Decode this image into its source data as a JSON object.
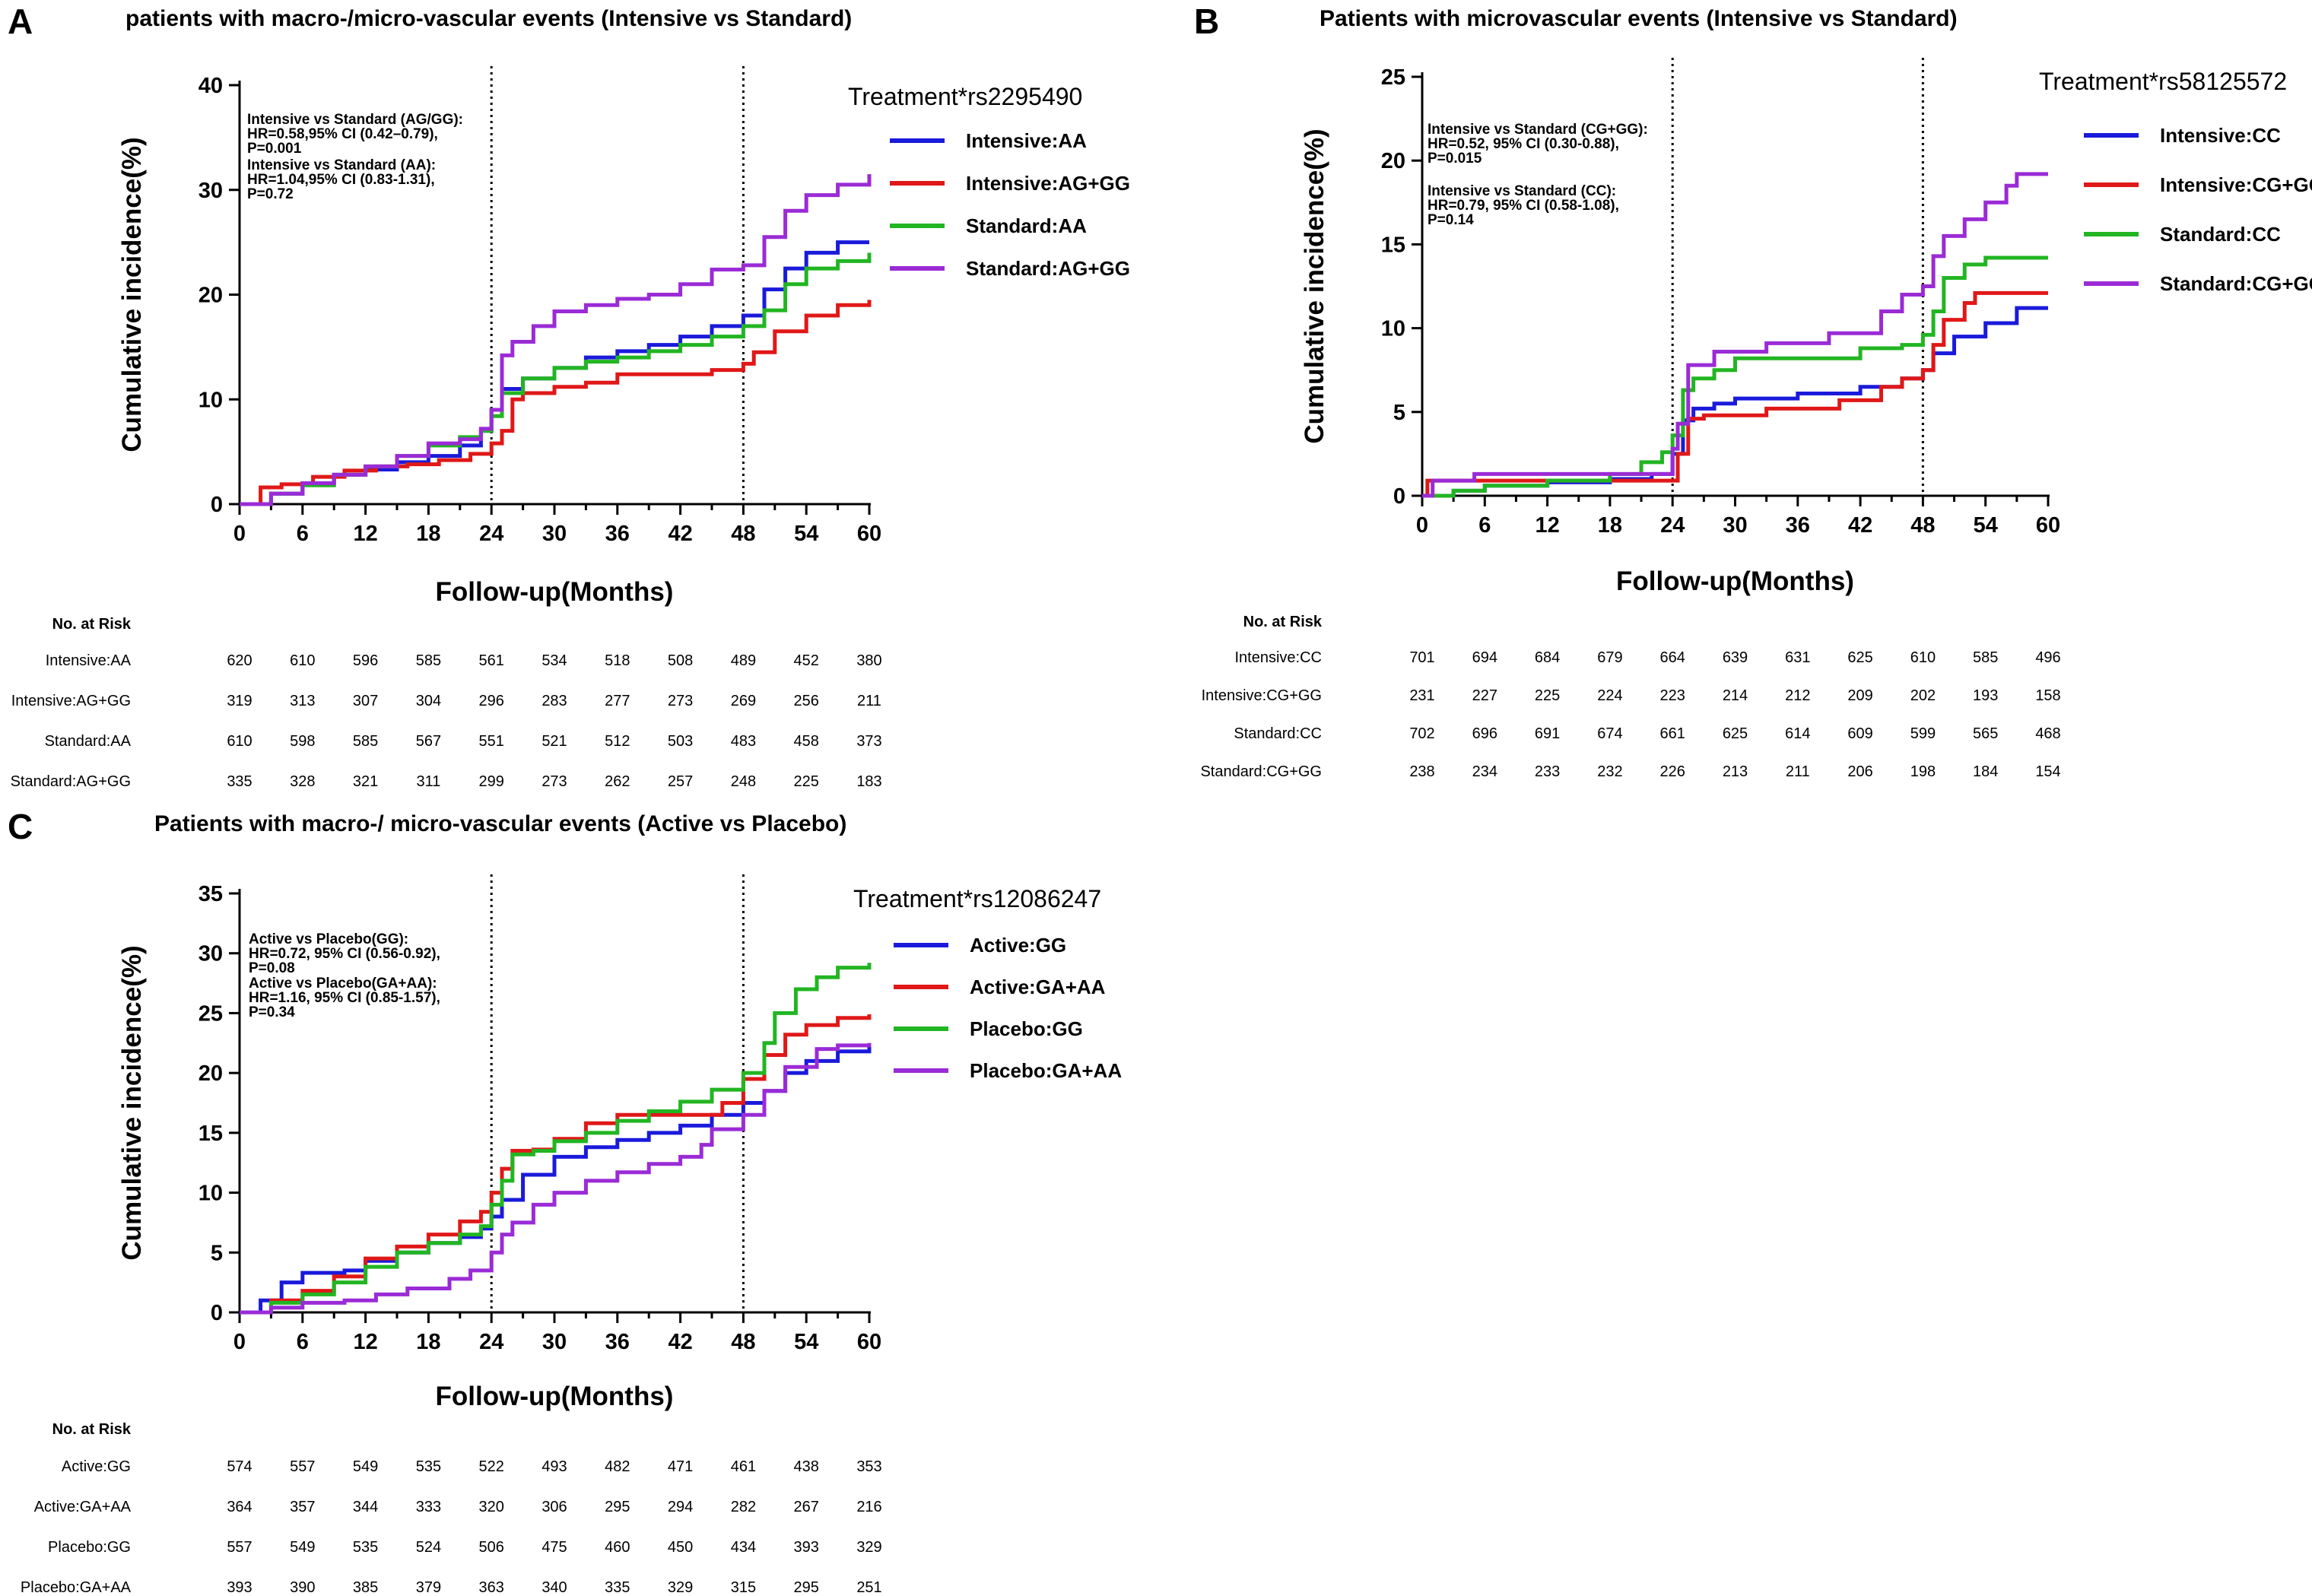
{
  "colors": {
    "blue": "#1a1adb",
    "red": "#e01818",
    "green": "#22b522",
    "purple": "#9a2bd6"
  },
  "risk_header": "No. at Risk",
  "xlabel": "Follow-up(Months)",
  "ylabel": "Cumulative incidence(%)",
  "chart_data": [
    {
      "type": "line",
      "panel": "A",
      "title": "patients with macro-/micro-vascular events (Intensive vs Standard)",
      "xlabel": "Follow-up(Months)",
      "ylabel": "Cumulative incidence(%)",
      "xlim": [
        0,
        60
      ],
      "ylim": [
        0,
        40
      ],
      "x_ticks": [
        0,
        6,
        12,
        18,
        24,
        30,
        36,
        42,
        48,
        54,
        60
      ],
      "y_ticks": [
        0,
        10,
        20,
        30,
        40
      ],
      "vlines": [
        24,
        48
      ],
      "legend_title": "Treatment*rs2295490",
      "annotations": [
        [
          "Intensive vs Standard (AG/GG):",
          "HR=0.58,95% CI (0.42–0.79),",
          "P=0.001"
        ],
        [
          "Intensive vs Standard (AA):",
          "HR=1.04,95% CI (0.83-1.31),",
          "P=0.72"
        ]
      ],
      "series": [
        {
          "name": "Intensive:AA",
          "color": "blue",
          "x": [
            0,
            3,
            6,
            9,
            12,
            15,
            18,
            21,
            23,
            24,
            25,
            27,
            30,
            33,
            36,
            39,
            42,
            45,
            48,
            50,
            52,
            54,
            57,
            60
          ],
          "y": [
            0,
            1,
            2,
            2.8,
            3.3,
            4,
            4.6,
            5.6,
            7,
            9,
            11,
            12,
            13,
            14,
            14.6,
            15.2,
            16,
            17,
            18,
            20.5,
            22.5,
            24,
            25,
            25
          ]
        },
        {
          "name": "Intensive:AG+GG",
          "color": "red",
          "x": [
            0,
            2,
            4,
            7,
            10,
            13,
            16,
            19,
            22,
            24,
            25,
            26,
            27,
            30,
            33,
            36,
            42,
            45,
            48,
            49,
            51,
            54,
            57,
            60
          ],
          "y": [
            0,
            1.6,
            1.9,
            2.6,
            3.2,
            3.6,
            3.8,
            4.2,
            4.8,
            5.8,
            7,
            10,
            10.6,
            11.2,
            11.6,
            12.4,
            12.4,
            12.8,
            13.4,
            14.5,
            16.5,
            18,
            19,
            19.5
          ]
        },
        {
          "name": "Standard:AA",
          "color": "green",
          "x": [
            0,
            3,
            6,
            9,
            12,
            15,
            18,
            21,
            23,
            24,
            25,
            27,
            30,
            33,
            36,
            39,
            42,
            45,
            48,
            50,
            52,
            54,
            57,
            60
          ],
          "y": [
            0,
            1,
            1.8,
            2.8,
            3.6,
            4.6,
            5.6,
            6.4,
            7,
            8.4,
            10.6,
            12,
            13,
            13.6,
            14,
            14.6,
            15.2,
            16,
            17,
            18.5,
            21,
            22.5,
            23.2,
            24
          ]
        },
        {
          "name": "Standard:AG+GG",
          "color": "purple",
          "x": [
            0,
            3,
            6,
            9,
            12,
            15,
            18,
            21,
            23,
            24,
            25,
            26,
            28,
            30,
            33,
            36,
            39,
            42,
            45,
            48,
            50,
            52,
            54,
            57,
            60
          ],
          "y": [
            0,
            1,
            2,
            2.8,
            3.6,
            4.6,
            5.8,
            6.2,
            7.2,
            9,
            14.2,
            15.5,
            17,
            18.4,
            19,
            19.6,
            20,
            21,
            22.4,
            22.8,
            25.5,
            28,
            29.5,
            30.5,
            31.5
          ]
        }
      ],
      "risk_table": [
        {
          "label": "Intensive:AA",
          "values": [
            620,
            610,
            596,
            585,
            561,
            534,
            518,
            508,
            489,
            452,
            380
          ]
        },
        {
          "label": "Intensive:AG+GG",
          "values": [
            319,
            313,
            307,
            304,
            296,
            283,
            277,
            273,
            269,
            256,
            211
          ]
        },
        {
          "label": "Standard:AA",
          "values": [
            610,
            598,
            585,
            567,
            551,
            521,
            512,
            503,
            483,
            458,
            373
          ]
        },
        {
          "label": "Standard:AG+GG",
          "values": [
            335,
            328,
            321,
            311,
            299,
            273,
            262,
            257,
            248,
            225,
            183
          ]
        }
      ]
    },
    {
      "type": "line",
      "panel": "B",
      "title": "Patients with microvascular events (Intensive vs Standard)",
      "xlabel": "Follow-up(Months)",
      "ylabel": "Cumulative incidence(%)",
      "xlim": [
        0,
        60
      ],
      "ylim": [
        0,
        25
      ],
      "x_ticks": [
        0,
        6,
        12,
        18,
        24,
        30,
        36,
        42,
        48,
        54,
        60
      ],
      "y_ticks": [
        0,
        5,
        10,
        15,
        20,
        25
      ],
      "vlines": [
        24,
        48
      ],
      "legend_title": "Treatment*rs58125572",
      "annotations": [
        [
          "Intensive vs Standard (CG+GG):",
          "HR=0.52, 95% CI (0.30-0.88),",
          "P=0.015"
        ],
        [
          "Intensive vs Standard (CC):",
          "HR=0.79, 95% CI (0.58-1.08),",
          "P=0.14"
        ]
      ],
      "series": [
        {
          "name": "Intensive:CC",
          "color": "blue",
          "x": [
            0,
            3,
            6,
            12,
            18,
            22,
            24,
            25,
            26,
            28,
            30,
            36,
            42,
            46,
            48,
            49,
            51,
            54,
            57,
            60
          ],
          "y": [
            0,
            0.3,
            0.6,
            0.8,
            1,
            1.3,
            2.5,
            4.5,
            5.2,
            5.5,
            5.8,
            6.1,
            6.5,
            7,
            7.5,
            8.5,
            9.5,
            10.3,
            11.2,
            11.2
          ]
        },
        {
          "name": "Intensive:CG+GG",
          "color": "red",
          "x": [
            0,
            0.5,
            24,
            24.5,
            25.5,
            27,
            33,
            40,
            44,
            46,
            48,
            49,
            50,
            52,
            53,
            60
          ],
          "y": [
            0,
            0.9,
            0.9,
            2.5,
            4.6,
            4.8,
            5.2,
            5.7,
            6.5,
            7,
            7.5,
            9,
            10.5,
            11.5,
            12.1,
            12.1
          ]
        },
        {
          "name": "Standard:CC",
          "color": "green",
          "x": [
            0,
            3,
            6,
            12,
            18,
            21,
            23,
            24,
            25,
            26,
            28,
            30,
            36,
            42,
            46,
            48,
            49,
            50,
            52,
            54,
            57,
            60
          ],
          "y": [
            0,
            0.3,
            0.6,
            0.9,
            1.3,
            2,
            2.6,
            3.6,
            6.3,
            7,
            7.5,
            8.2,
            8.2,
            8.8,
            9,
            9.6,
            11,
            13,
            13.8,
            14.2,
            14.2,
            14.2
          ]
        },
        {
          "name": "Standard:CG+GG",
          "color": "purple",
          "x": [
            0,
            1,
            5,
            12,
            22,
            24,
            24.5,
            25.5,
            28,
            33,
            39,
            44,
            46,
            48,
            49,
            50,
            52,
            54,
            56,
            57,
            60
          ],
          "y": [
            0,
            0.9,
            1.3,
            1.3,
            1.3,
            2.8,
            4.3,
            7.8,
            8.6,
            9.1,
            9.7,
            11,
            12,
            12.5,
            14.3,
            15.5,
            16.5,
            17.5,
            18.5,
            19.2,
            19.2
          ]
        }
      ],
      "risk_table": [
        {
          "label": "Intensive:CC",
          "values": [
            701,
            694,
            684,
            679,
            664,
            639,
            631,
            625,
            610,
            585,
            496
          ]
        },
        {
          "label": "Intensive:CG+GG",
          "values": [
            231,
            227,
            225,
            224,
            223,
            214,
            212,
            209,
            202,
            193,
            158
          ]
        },
        {
          "label": "Standard:CC",
          "values": [
            702,
            696,
            691,
            674,
            661,
            625,
            614,
            609,
            599,
            565,
            468
          ]
        },
        {
          "label": "Standard:CG+GG",
          "values": [
            238,
            234,
            233,
            232,
            226,
            213,
            211,
            206,
            198,
            184,
            154
          ]
        }
      ]
    },
    {
      "type": "line",
      "panel": "C",
      "title": "Patients with macro-/ micro-vascular events (Active vs Placebo)",
      "xlabel": "Follow-up(Months)",
      "ylabel": "Cumulative incidence(%)",
      "xlim": [
        0,
        60
      ],
      "ylim": [
        0,
        35
      ],
      "x_ticks": [
        0,
        6,
        12,
        18,
        24,
        30,
        36,
        42,
        48,
        54,
        60
      ],
      "y_ticks": [
        0,
        5,
        10,
        15,
        20,
        25,
        30,
        35
      ],
      "vlines": [
        24,
        48
      ],
      "legend_title": "Treatment*rs12086247",
      "annotations": [
        [
          "Active vs Placebo(GG):",
          "HR=0.72, 95% CI (0.56-0.92),",
          "P=0.08"
        ],
        [
          "Active vs Placebo(GA+AA):",
          "HR=1.16, 95% CI (0.85-1.57),",
          "P=0.34"
        ]
      ],
      "series": [
        {
          "name": "Active:GG",
          "color": "blue",
          "x": [
            0,
            2,
            4,
            6,
            10,
            12,
            15,
            18,
            21,
            23,
            24,
            25,
            27,
            30,
            33,
            36,
            39,
            42,
            45,
            48,
            50,
            52,
            54,
            57,
            60
          ],
          "y": [
            0,
            1,
            2.5,
            3.3,
            3.5,
            4.3,
            5,
            5.8,
            6.3,
            7,
            8,
            9.4,
            11.5,
            13,
            13.8,
            14.4,
            15,
            15.6,
            16.5,
            17.5,
            18.5,
            20,
            21,
            21.8,
            22.2
          ]
        },
        {
          "name": "Active:GA+AA",
          "color": "red",
          "x": [
            0,
            3,
            6,
            9,
            12,
            15,
            18,
            21,
            23,
            24,
            25,
            26,
            28,
            30,
            33,
            36,
            42,
            46,
            48,
            50,
            52,
            54,
            57,
            60
          ],
          "y": [
            0,
            1,
            1.8,
            3,
            4.5,
            5.5,
            6.5,
            7.6,
            8.4,
            10,
            12,
            13.5,
            13.6,
            14.5,
            15.8,
            16.5,
            16.5,
            17.5,
            19.5,
            21.5,
            23.2,
            24,
            24.6,
            24.9
          ]
        },
        {
          "name": "Placebo:GG",
          "color": "green",
          "x": [
            0,
            3,
            6,
            9,
            12,
            15,
            18,
            21,
            23,
            24,
            25,
            26,
            28,
            30,
            33,
            36,
            39,
            42,
            45,
            48,
            50,
            51,
            53,
            55,
            57,
            60
          ],
          "y": [
            0,
            0.8,
            1.5,
            2.5,
            3.8,
            5,
            5.8,
            6.5,
            7.2,
            9,
            11,
            13.2,
            13.5,
            14.3,
            15,
            16,
            16.8,
            17.6,
            18.6,
            20,
            22.5,
            25,
            27,
            28,
            28.8,
            29.2
          ]
        },
        {
          "name": "Placebo:GA+AA",
          "color": "purple",
          "x": [
            0,
            3,
            6,
            10,
            13,
            16,
            20,
            22,
            24,
            25,
            26,
            28,
            30,
            33,
            36,
            39,
            42,
            44,
            45,
            48,
            50,
            52,
            55,
            57,
            60
          ],
          "y": [
            0,
            0.4,
            0.8,
            1,
            1.5,
            2,
            2.8,
            3.5,
            5,
            6.5,
            7.5,
            9,
            10,
            11,
            11.7,
            12.4,
            13,
            14,
            15.3,
            16.5,
            18.5,
            20.5,
            22,
            22.3,
            22.5
          ]
        }
      ],
      "risk_table": [
        {
          "label": "Active:GG",
          "values": [
            574,
            557,
            549,
            535,
            522,
            493,
            482,
            471,
            461,
            438,
            353
          ]
        },
        {
          "label": "Active:GA+AA",
          "values": [
            364,
            357,
            344,
            333,
            320,
            306,
            295,
            294,
            282,
            267,
            216
          ]
        },
        {
          "label": "Placebo:GG",
          "values": [
            557,
            549,
            535,
            524,
            506,
            475,
            460,
            450,
            434,
            393,
            329
          ]
        },
        {
          "label": "Placebo:GA+AA",
          "values": [
            393,
            390,
            385,
            379,
            363,
            340,
            335,
            329,
            315,
            295,
            251
          ]
        }
      ]
    }
  ]
}
